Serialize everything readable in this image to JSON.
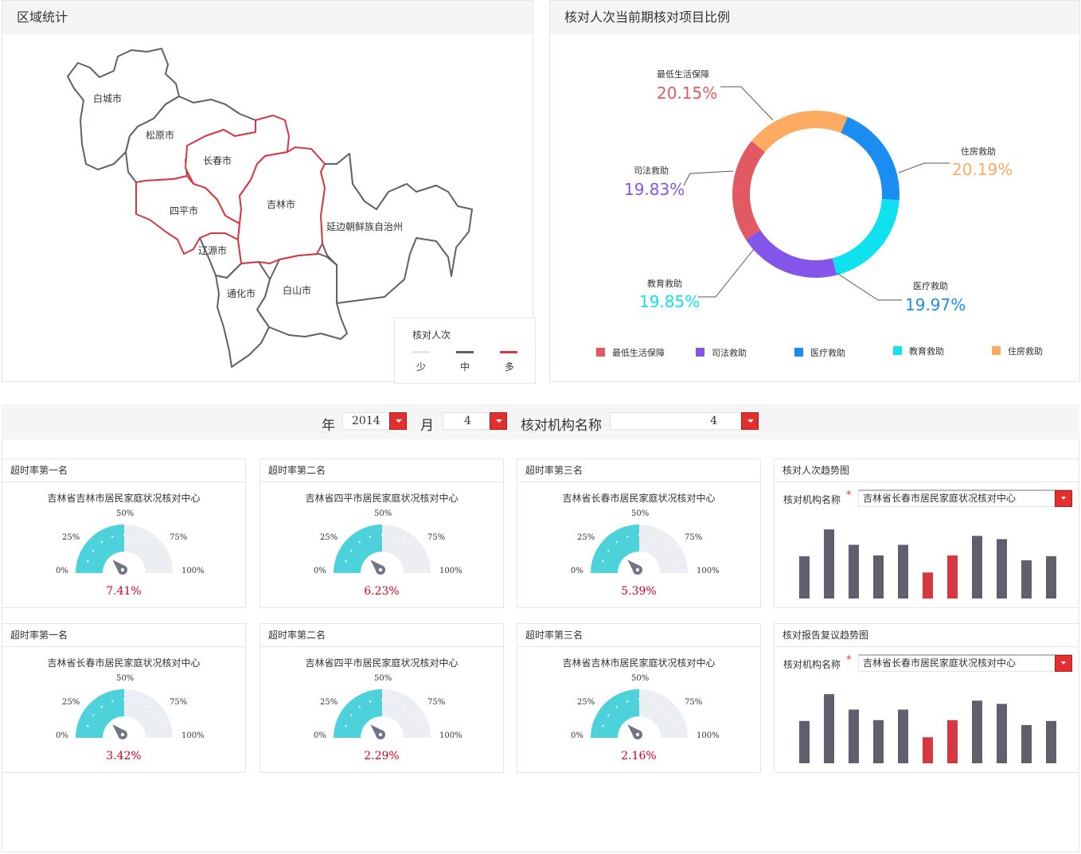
{
  "region_panel": {
    "title": "区域统计",
    "cities": [
      "白城市",
      "松原市",
      "长春市",
      "四平市",
      "吉林市",
      "延边朝鲜族自治州",
      "辽源市",
      "通化市",
      "白山市"
    ],
    "legend": {
      "title": "核对人次",
      "low": "少",
      "mid": "中",
      "high": "多",
      "colors": {
        "low": "#e6e6e6",
        "mid": "#5f5f6e",
        "high": "#d7373f"
      }
    }
  },
  "donut_panel": {
    "title": "核对人次当前期核对项目比例",
    "chart_data": {
      "type": "pie",
      "slices": [
        {
          "name": "最低生活保障",
          "value": 20.15,
          "label": "20.15%",
          "color": "#e15a63"
        },
        {
          "name": "住房救助",
          "value": 20.19,
          "label": "20.19%",
          "color": "#fdaa62"
        },
        {
          "name": "医疗救助",
          "value": 19.97,
          "label": "19.97%",
          "color": "#1b8df0"
        },
        {
          "name": "教育救助",
          "value": 19.85,
          "label": "19.85%",
          "color": "#0fe2ee"
        },
        {
          "name": "司法救助",
          "value": 19.83,
          "label": "19.83%",
          "color": "#8355e8"
        }
      ],
      "legend": [
        "最低生活保障",
        "司法救助",
        "医疗救助",
        "教育救助",
        "住房救助"
      ],
      "legend_placement": "bottom"
    }
  },
  "filters": {
    "year_label": "年",
    "year_value": "2014",
    "month_label": "月",
    "month_value": "4",
    "org_label": "核对机构名称",
    "org_value": "4"
  },
  "gauges": [
    {
      "title": "超时率第一名",
      "name": "吉林省吉林市居民家庭状况核对中心",
      "value": 7.41,
      "text": "7.41%"
    },
    {
      "title": "超时率第二名",
      "name": "吉林省四平市居民家庭状况核对中心",
      "value": 6.23,
      "text": "6.23%"
    },
    {
      "title": "超时率第三名",
      "name": "吉林省长春市居民家庭状况核对中心",
      "value": 5.39,
      "text": "5.39%"
    },
    {
      "title": "超时率第一名",
      "name": "吉林省长春市居民家庭状况核对中心",
      "value": 3.42,
      "text": "3.42%"
    },
    {
      "title": "超时率第二名",
      "name": "吉林省四平市居民家庭状况核对中心",
      "value": 2.29,
      "text": "2.29%"
    },
    {
      "title": "超时率第三名",
      "name": "吉林省吉林市居民家庭状况核对中心",
      "value": 2.16,
      "text": "2.16%"
    }
  ],
  "gauge_ticks": {
    "t0": "0%",
    "t25": "25%",
    "t50": "50%",
    "t75": "75%",
    "t100": "100%"
  },
  "gauge_colors": {
    "fill": "#4dd2dc",
    "track": "#ebeef3",
    "needle": "#6e7587"
  },
  "trend_charts": [
    {
      "title": "核对人次趋势图",
      "org_label": "核对机构名称",
      "required": "*",
      "org_value": "吉林省长春市居民家庭状况核对中心",
      "chart_data": {
        "type": "bar",
        "values": [
          52,
          85,
          66,
          53,
          66,
          32,
          53,
          77,
          73,
          47,
          52
        ],
        "highlight": [
          5,
          6
        ],
        "colors": {
          "normal": "#5f5f6e",
          "highlight": "#d7373f"
        },
        "ylim": [
          0,
          90
        ]
      }
    },
    {
      "title": "核对报告复议趋势图",
      "org_label": "核对机构名称",
      "required": "*",
      "org_value": "吉林省长春市居民家庭状况核对中心",
      "chart_data": {
        "type": "bar",
        "values": [
          52,
          85,
          66,
          53,
          66,
          32,
          53,
          77,
          73,
          47,
          52
        ],
        "highlight": [
          5,
          6
        ],
        "colors": {
          "normal": "#5f5f6e",
          "highlight": "#d7373f"
        },
        "ylim": [
          0,
          90
        ]
      }
    }
  ]
}
